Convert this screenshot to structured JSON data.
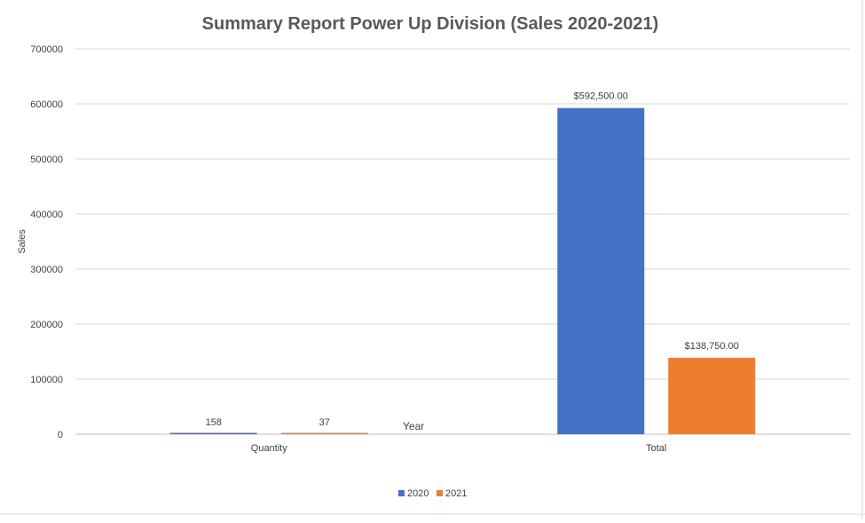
{
  "chart_data": {
    "type": "bar",
    "title": "Summary  Report Power Up Division (Sales 2020-2021)",
    "ylabel": "Sales",
    "xlabel": "",
    "annotation": "Year",
    "categories": [
      "Quantity",
      "Total"
    ],
    "series": [
      {
        "name": "2020",
        "color": "#4472C4",
        "values": [
          158,
          592500
        ],
        "labels": [
          "158",
          "$592,500.00"
        ]
      },
      {
        "name": "2021",
        "color": "#ED7D31",
        "values": [
          37,
          138750
        ],
        "labels": [
          "37",
          "$138,750.00"
        ]
      }
    ],
    "ylim": [
      0,
      700000
    ],
    "yticks": [
      "0",
      "100000",
      "200000",
      "300000",
      "400000",
      "500000",
      "600000",
      "700000"
    ],
    "grid": true,
    "legend": "bottom"
  }
}
